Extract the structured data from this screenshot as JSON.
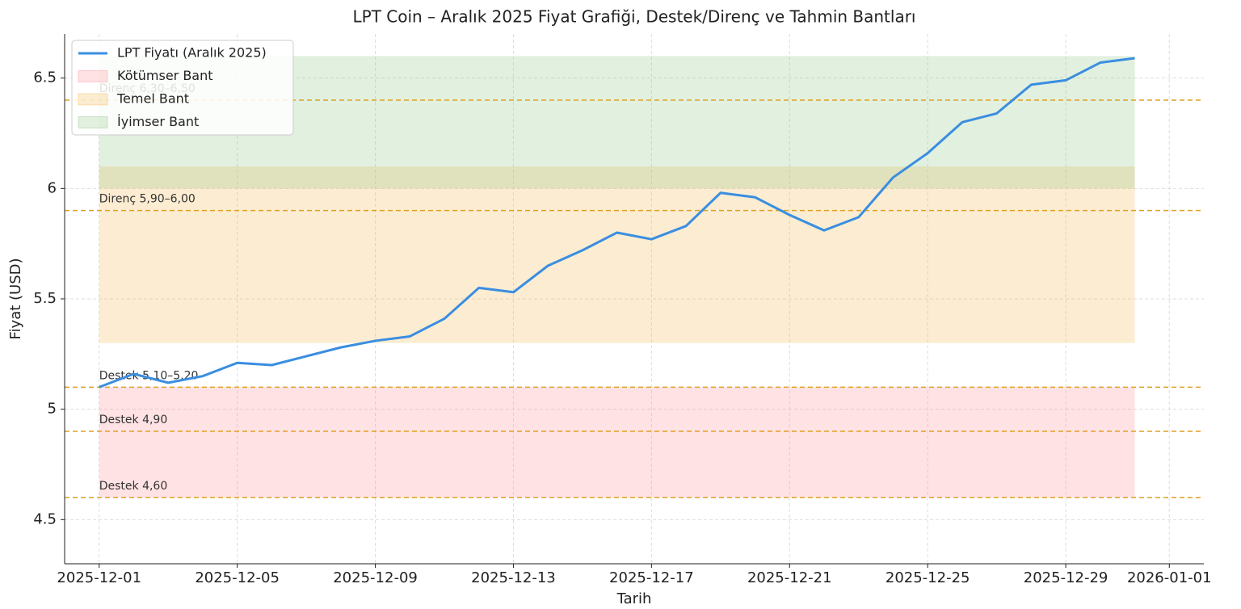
{
  "chart_data": {
    "type": "line",
    "title": "LPT Coin – Aralık 2025 Fiyat Grafiği, Destek/Direnç ve Tahmin Bantları",
    "x_label": "Tarih",
    "y_label": "Fiyat (USD)",
    "x": [
      "2025-12-01",
      "2025-12-02",
      "2025-12-03",
      "2025-12-04",
      "2025-12-05",
      "2025-12-06",
      "2025-12-07",
      "2025-12-08",
      "2025-12-09",
      "2025-12-10",
      "2025-12-11",
      "2025-12-12",
      "2025-12-13",
      "2025-12-14",
      "2025-12-15",
      "2025-12-16",
      "2025-12-17",
      "2025-12-18",
      "2025-12-19",
      "2025-12-20",
      "2025-12-21",
      "2025-12-22",
      "2025-12-23",
      "2025-12-24",
      "2025-12-25",
      "2025-12-26",
      "2025-12-27",
      "2025-12-28",
      "2025-12-29",
      "2025-12-30",
      "2025-12-31"
    ],
    "series": [
      {
        "name": "LPT Fiyatı (Aralık 2025)",
        "color": "#3a8ee0",
        "values": [
          5.1,
          5.16,
          5.12,
          5.15,
          5.21,
          5.2,
          5.24,
          5.28,
          5.31,
          5.33,
          5.41,
          5.55,
          5.53,
          5.65,
          5.72,
          5.8,
          5.77,
          5.83,
          5.98,
          5.96,
          5.88,
          5.81,
          5.87,
          6.05,
          6.16,
          6.3,
          6.34,
          6.47,
          6.49,
          6.57,
          6.59
        ]
      }
    ],
    "bands": [
      {
        "name": "Kötümser Bant",
        "color": "#ff8a95",
        "from": 4.6,
        "to": 5.1
      },
      {
        "name": "Temel Bant",
        "color": "#f5b94a",
        "from": 5.3,
        "to": 6.1
      },
      {
        "name": "İyimser Bant",
        "color": "#8cc47f",
        "from": 6.0,
        "to": 6.6
      }
    ],
    "levels": [
      {
        "value": 6.4,
        "label": "Direnç 6,30–6,50"
      },
      {
        "value": 5.9,
        "label": "Direnç 5,90–6,00"
      },
      {
        "value": 5.1,
        "label": "Destek 5,10–5,20"
      },
      {
        "value": 4.9,
        "label": "Destek 4,90"
      },
      {
        "value": 4.6,
        "label": "Destek 4,60"
      }
    ],
    "level_color": "#e0a020",
    "xlim": [
      "2025-11-30",
      "2026-01-02"
    ],
    "xticks": [
      "2025-12-01",
      "2025-12-05",
      "2025-12-09",
      "2025-12-13",
      "2025-12-17",
      "2025-12-21",
      "2025-12-25",
      "2025-12-29",
      "2026-01-01"
    ],
    "ylim": [
      4.3,
      6.7
    ],
    "yticks": [
      4.5,
      5.0,
      5.5,
      6.0,
      6.5
    ],
    "grid": true,
    "legend": "upper left"
  }
}
